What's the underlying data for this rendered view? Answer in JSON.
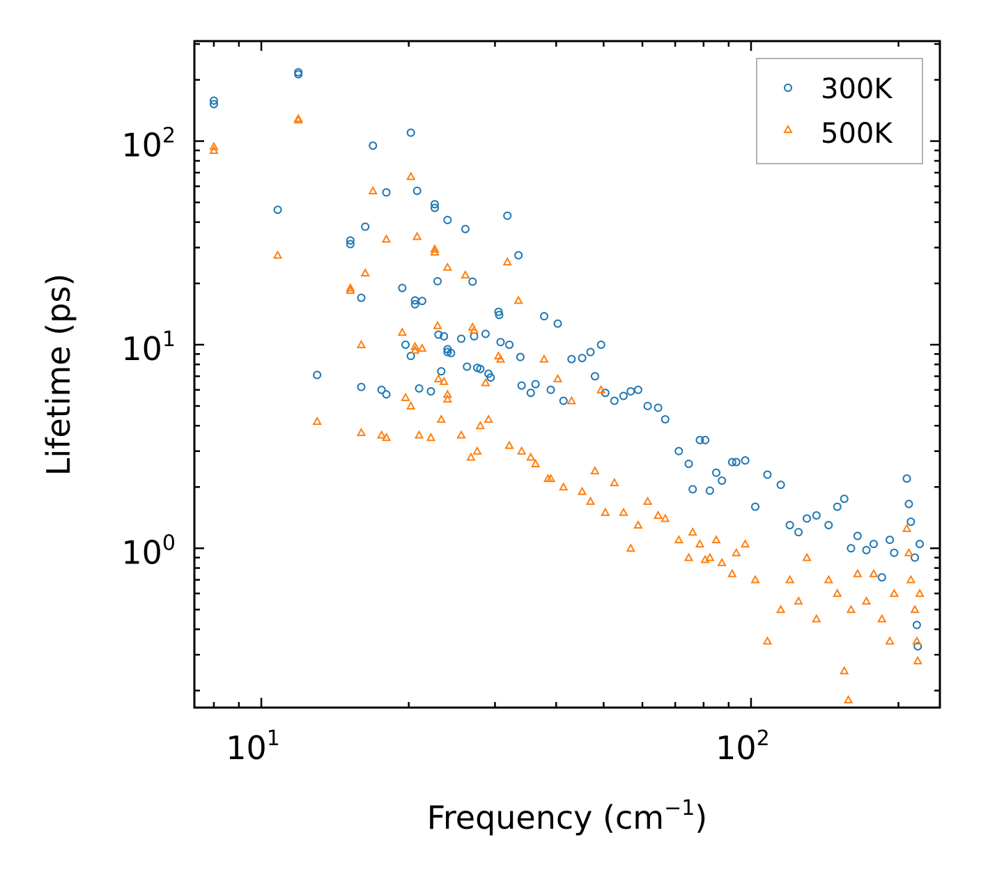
{
  "chart_data": {
    "type": "scatter",
    "xscale": "log",
    "yscale": "log",
    "xlim": [
      7.3,
      243
    ],
    "ylim": [
      0.165,
      310
    ],
    "xlabel": "Frequency (cm",
    "xlabel_sup": "−1",
    "xlabel_end": ")",
    "ylabel": "Lifetime (ps)",
    "x_ticks": [
      {
        "value": 10,
        "base": "10",
        "exp": "1"
      },
      {
        "value": 100,
        "base": "10",
        "exp": "2"
      }
    ],
    "y_ticks": [
      {
        "value": 1,
        "base": "10",
        "exp": "0"
      },
      {
        "value": 10,
        "base": "10",
        "exp": "1"
      },
      {
        "value": 100,
        "base": "10",
        "exp": "2"
      }
    ],
    "legend": {
      "position": "top-right"
    },
    "series": [
      {
        "name": "300K",
        "color": "#1f77b4",
        "marker": "circle",
        "points": [
          [
            8.0,
            158
          ],
          [
            8.0,
            152
          ],
          [
            11.9,
            218
          ],
          [
            11.9,
            213
          ],
          [
            10.8,
            46
          ],
          [
            13.0,
            7.1
          ],
          [
            15.2,
            32.5
          ],
          [
            15.2,
            31.2
          ],
          [
            16.0,
            17
          ],
          [
            16.0,
            6.2
          ],
          [
            16.3,
            38
          ],
          [
            16.9,
            95
          ],
          [
            17.6,
            6.0
          ],
          [
            18.0,
            5.7
          ],
          [
            18.0,
            56
          ],
          [
            19.4,
            19
          ],
          [
            19.7,
            10
          ],
          [
            20.2,
            110
          ],
          [
            20.2,
            8.8
          ],
          [
            20.6,
            16.5
          ],
          [
            20.6,
            15.8
          ],
          [
            20.8,
            57
          ],
          [
            21.0,
            6.1
          ],
          [
            21.3,
            16.4
          ],
          [
            22.2,
            5.9
          ],
          [
            22.6,
            49
          ],
          [
            22.6,
            47
          ],
          [
            22.9,
            20.5
          ],
          [
            23.0,
            11.2
          ],
          [
            23.3,
            7.4
          ],
          [
            23.6,
            11
          ],
          [
            24.0,
            9.5
          ],
          [
            24.0,
            9.2
          ],
          [
            24.4,
            9.1
          ],
          [
            24.0,
            41
          ],
          [
            25.6,
            10.7
          ],
          [
            26.1,
            37
          ],
          [
            26.3,
            7.8
          ],
          [
            27.0,
            20.4
          ],
          [
            27.2,
            11
          ],
          [
            27.6,
            7.7
          ],
          [
            28.0,
            7.6
          ],
          [
            28.7,
            11.3
          ],
          [
            29.1,
            7.2
          ],
          [
            29.4,
            6.9
          ],
          [
            30.5,
            14.5
          ],
          [
            30.6,
            14
          ],
          [
            30.8,
            10.3
          ],
          [
            31.8,
            43
          ],
          [
            32.1,
            10
          ],
          [
            33.5,
            27.5
          ],
          [
            33.8,
            8.7
          ],
          [
            34.0,
            6.3
          ],
          [
            35.5,
            5.8
          ],
          [
            36.3,
            6.4
          ],
          [
            37.8,
            13.8
          ],
          [
            39.0,
            6.0
          ],
          [
            40.3,
            12.7
          ],
          [
            41.4,
            5.3
          ],
          [
            43.0,
            8.5
          ],
          [
            45.2,
            8.6
          ],
          [
            47.0,
            9.2
          ],
          [
            48.0,
            7.0
          ],
          [
            49.4,
            10
          ],
          [
            50.4,
            5.8
          ],
          [
            52.6,
            5.3
          ],
          [
            54.9,
            5.6
          ],
          [
            56.8,
            5.9
          ],
          [
            58.8,
            6.0
          ],
          [
            61.5,
            5.0
          ],
          [
            64.6,
            4.9
          ],
          [
            66.8,
            4.3
          ],
          [
            71.2,
            3.0
          ],
          [
            74.6,
            2.6
          ],
          [
            76.0,
            1.95
          ],
          [
            78.6,
            3.4
          ],
          [
            80.6,
            3.4
          ],
          [
            82.4,
            1.92
          ],
          [
            84.9,
            2.35
          ],
          [
            87.2,
            2.15
          ],
          [
            91.5,
            2.65
          ],
          [
            93.3,
            2.65
          ],
          [
            97.3,
            2.7
          ],
          [
            102,
            1.6
          ],
          [
            108,
            2.3
          ],
          [
            115,
            2.05
          ],
          [
            120,
            1.3
          ],
          [
            125,
            1.2
          ],
          [
            130,
            1.4
          ],
          [
            136,
            1.45
          ],
          [
            144,
            1.3
          ],
          [
            150,
            1.6
          ],
          [
            155,
            1.75
          ],
          [
            160,
            1.0
          ],
          [
            165,
            1.15
          ],
          [
            172,
            0.98
          ],
          [
            178,
            1.05
          ],
          [
            185,
            0.72
          ],
          [
            192,
            1.1
          ],
          [
            196,
            0.95
          ],
          [
            208,
            2.2
          ],
          [
            210,
            1.65
          ],
          [
            212,
            1.35
          ],
          [
            216,
            0.9
          ],
          [
            218,
            0.42
          ],
          [
            219,
            0.33
          ],
          [
            221,
            1.05
          ]
        ]
      },
      {
        "name": "500K",
        "color": "#ff7f0e",
        "marker": "triangle",
        "points": [
          [
            8.0,
            94
          ],
          [
            8.0,
            90
          ],
          [
            11.9,
            129
          ],
          [
            11.9,
            127
          ],
          [
            10.8,
            27.5
          ],
          [
            13.0,
            4.2
          ],
          [
            15.2,
            19
          ],
          [
            15.2,
            18.5
          ],
          [
            16.0,
            10
          ],
          [
            16.0,
            3.7
          ],
          [
            16.3,
            22.5
          ],
          [
            16.9,
            57
          ],
          [
            17.6,
            3.6
          ],
          [
            18.0,
            3.5
          ],
          [
            18.0,
            33
          ],
          [
            19.4,
            11.5
          ],
          [
            19.7,
            5.5
          ],
          [
            20.2,
            67
          ],
          [
            20.2,
            5.0
          ],
          [
            20.6,
            9.8
          ],
          [
            20.6,
            9.4
          ],
          [
            20.8,
            34
          ],
          [
            21.0,
            3.6
          ],
          [
            21.3,
            9.6
          ],
          [
            22.2,
            3.5
          ],
          [
            22.6,
            29.5
          ],
          [
            22.6,
            28.5
          ],
          [
            22.9,
            12.4
          ],
          [
            23.0,
            6.8
          ],
          [
            23.3,
            4.3
          ],
          [
            23.6,
            6.6
          ],
          [
            24.0,
            5.7
          ],
          [
            24.0,
            5.4
          ],
          [
            24.0,
            24
          ],
          [
            25.6,
            3.6
          ],
          [
            26.1,
            22
          ],
          [
            26.8,
            2.8
          ],
          [
            27.0,
            12.2
          ],
          [
            27.2,
            11.8
          ],
          [
            27.6,
            3.0
          ],
          [
            28.0,
            4.0
          ],
          [
            28.7,
            6.5
          ],
          [
            29.1,
            4.3
          ],
          [
            30.5,
            8.8
          ],
          [
            30.8,
            8.5
          ],
          [
            31.8,
            25.5
          ],
          [
            32.1,
            3.2
          ],
          [
            33.5,
            16.5
          ],
          [
            34.0,
            3.0
          ],
          [
            35.5,
            2.8
          ],
          [
            36.3,
            2.6
          ],
          [
            37.8,
            8.5
          ],
          [
            38.5,
            2.2
          ],
          [
            39.0,
            2.2
          ],
          [
            40.3,
            6.8
          ],
          [
            41.4,
            2.0
          ],
          [
            43.0,
            5.3
          ],
          [
            45.2,
            1.9
          ],
          [
            47.0,
            1.7
          ],
          [
            48.0,
            2.4
          ],
          [
            49.4,
            6.0
          ],
          [
            50.4,
            1.5
          ],
          [
            52.6,
            2.1
          ],
          [
            54.9,
            1.5
          ],
          [
            56.8,
            1.0
          ],
          [
            58.8,
            1.3
          ],
          [
            61.5,
            1.7
          ],
          [
            64.6,
            1.45
          ],
          [
            66.8,
            1.4
          ],
          [
            71.2,
            1.1
          ],
          [
            74.6,
            0.9
          ],
          [
            76.0,
            1.2
          ],
          [
            78.6,
            1.05
          ],
          [
            80.6,
            0.88
          ],
          [
            82.4,
            0.9
          ],
          [
            84.9,
            1.1
          ],
          [
            87.2,
            0.85
          ],
          [
            91.5,
            0.75
          ],
          [
            93.3,
            0.95
          ],
          [
            97.3,
            1.05
          ],
          [
            102,
            0.7
          ],
          [
            108,
            0.35
          ],
          [
            115,
            0.5
          ],
          [
            120,
            0.7
          ],
          [
            125,
            0.55
          ],
          [
            130,
            0.9
          ],
          [
            136,
            0.45
          ],
          [
            144,
            0.7
          ],
          [
            150,
            0.6
          ],
          [
            155,
            0.25
          ],
          [
            158,
            0.18
          ],
          [
            160,
            0.5
          ],
          [
            165,
            0.75
          ],
          [
            172,
            0.55
          ],
          [
            178,
            0.75
          ],
          [
            185,
            0.45
          ],
          [
            192,
            0.35
          ],
          [
            196,
            0.6
          ],
          [
            208,
            1.25
          ],
          [
            210,
            0.95
          ],
          [
            212,
            0.7
          ],
          [
            216,
            0.5
          ],
          [
            218,
            0.35
          ],
          [
            219,
            0.28
          ],
          [
            221,
            0.6
          ]
        ]
      }
    ]
  }
}
